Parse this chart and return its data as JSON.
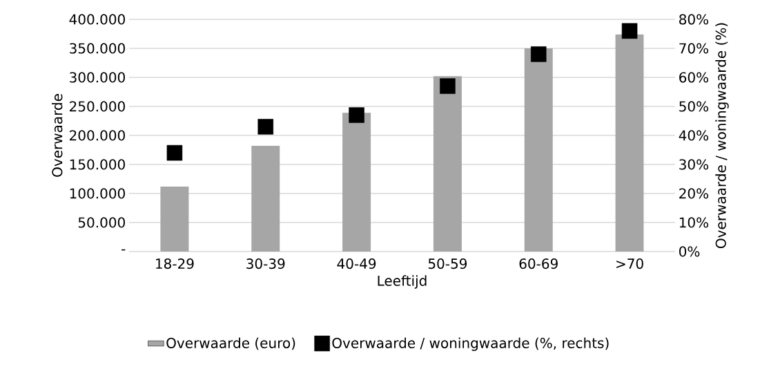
{
  "chart_data": {
    "type": "bar",
    "xlabel": "Leeftijd",
    "ylabel": "Overwaarde",
    "y2label": "Overwaarde / woningwaarde (%)",
    "categories": [
      "18-29",
      "30-39",
      "40-49",
      "50-59",
      "60-69",
      ">70"
    ],
    "series": [
      {
        "name": "Overwaarde (euro)",
        "color": "#a6a6a6",
        "values": [
          112000,
          182000,
          239000,
          302000,
          350000,
          374000
        ]
      },
      {
        "name": "Overwaarde / woningwaarde (%, rechts)",
        "type": "scatter",
        "axis": "y2",
        "color": "#000000",
        "values": [
          34,
          43,
          47,
          57,
          68,
          76
        ]
      }
    ],
    "ylim": [
      0,
      400000
    ],
    "yticks": [
      {
        "value": 0,
        "label": "-"
      },
      {
        "value": 50000,
        "label": "50.000"
      },
      {
        "value": 100000,
        "label": "100.000"
      },
      {
        "value": 150000,
        "label": "150.000"
      },
      {
        "value": 200000,
        "label": "200.000"
      },
      {
        "value": 250000,
        "label": "250.000"
      },
      {
        "value": 300000,
        "label": "300.000"
      },
      {
        "value": 350000,
        "label": "350.000"
      },
      {
        "value": 400000,
        "label": "400.000"
      }
    ],
    "y2lim": [
      0,
      80
    ],
    "y2ticks": [
      {
        "value": 0,
        "label": "0%"
      },
      {
        "value": 10,
        "label": "10%"
      },
      {
        "value": 20,
        "label": "20%"
      },
      {
        "value": 30,
        "label": "30%"
      },
      {
        "value": 40,
        "label": "40%"
      },
      {
        "value": 50,
        "label": "50%"
      },
      {
        "value": 60,
        "label": "60%"
      },
      {
        "value": 70,
        "label": "70%"
      },
      {
        "value": 80,
        "label": "80%"
      }
    ],
    "grid": "y",
    "legend": "bottom",
    "marker": "square"
  }
}
